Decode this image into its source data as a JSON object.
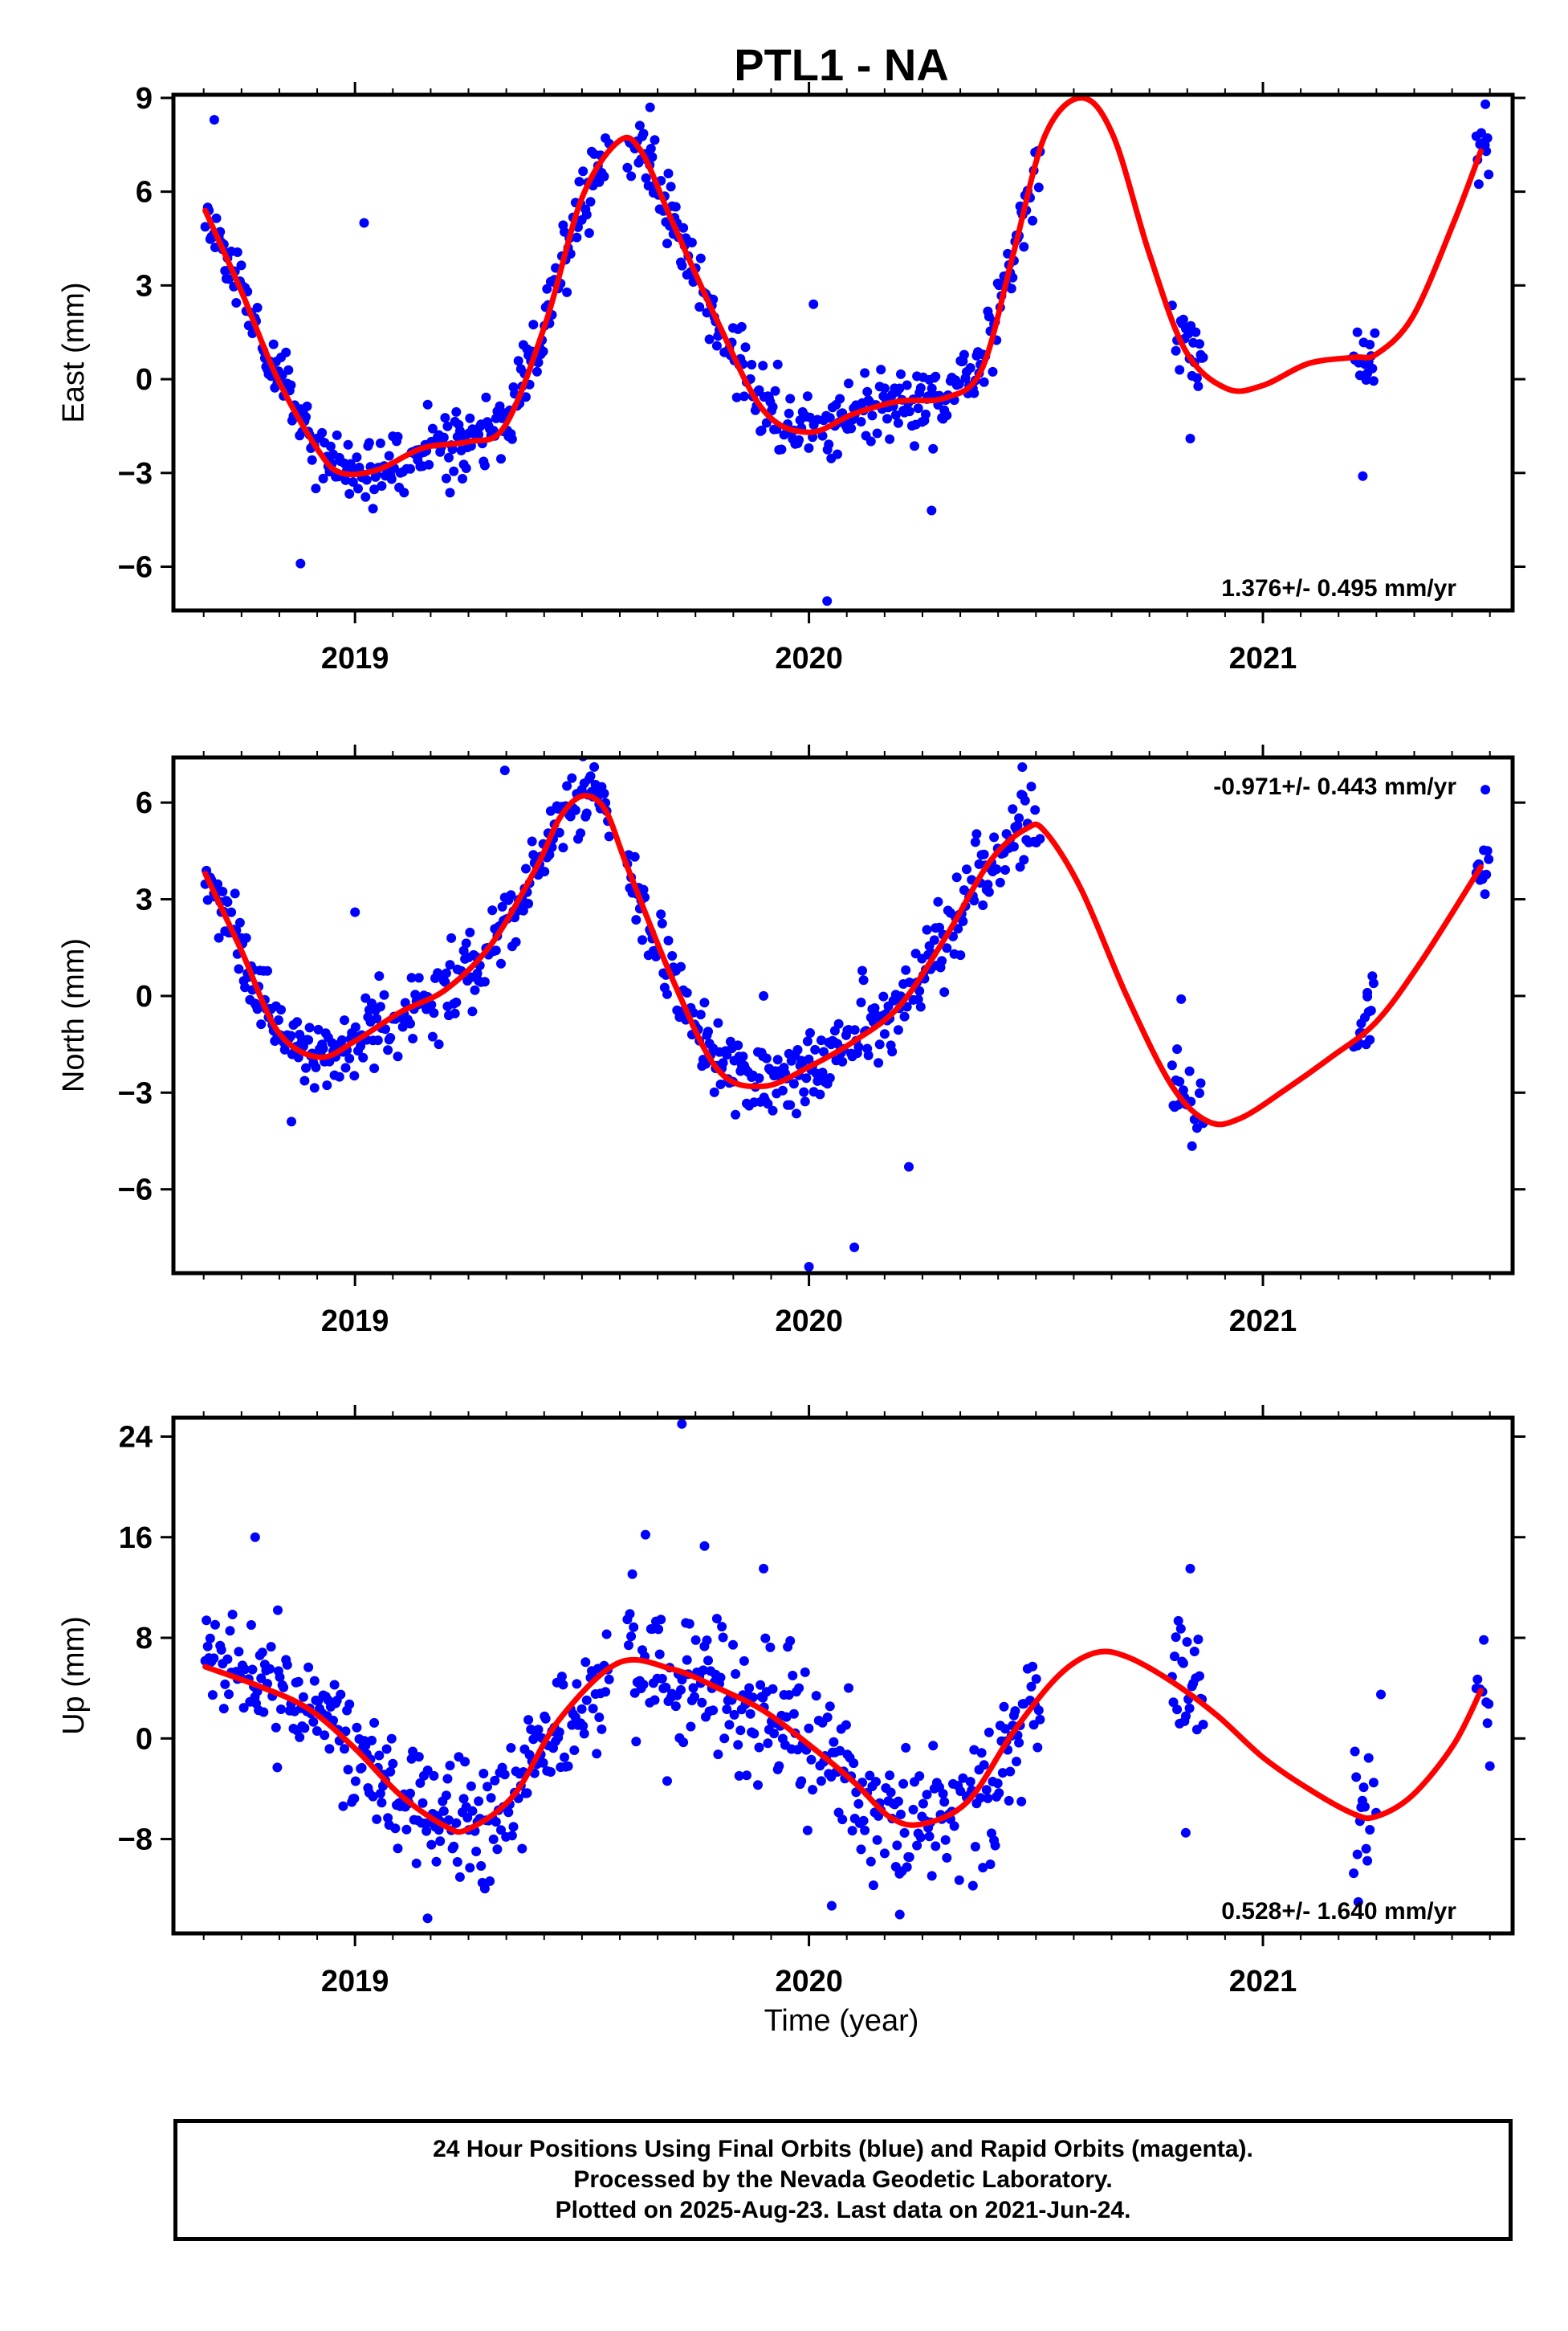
{
  "chart_data": {
    "type": "scatter",
    "title": "PTL1 - NA",
    "xlabel": "Time (year)",
    "xlim": [
      2018.6,
      2021.55
    ],
    "x_ticks": [
      2019,
      2020,
      2021
    ],
    "x_tick_labels": [
      "2019",
      "2020",
      "2021"
    ],
    "colors": {
      "points": "#0000ff",
      "fit": "#ff0000"
    },
    "panels": [
      {
        "ylabel": "East (mm)",
        "ylim": [
          -7.4,
          9.1
        ],
        "y_ticks": [
          -6,
          -3,
          0,
          3,
          6,
          9
        ],
        "y_tick_labels": [
          "−6",
          "−3",
          "0",
          "3",
          "6",
          "9"
        ],
        "rate": "1.376+/- 0.495 mm/yr",
        "rate_position": "bottom-right",
        "fit": {
          "x": [
            2018.67,
            2018.75,
            2018.83,
            2018.92,
            2018.97,
            2019.05,
            2019.15,
            2019.25,
            2019.33,
            2019.42,
            2019.5,
            2019.58,
            2019.63,
            2019.7,
            2019.8,
            2019.9,
            2020.0,
            2020.1,
            2020.2,
            2020.3,
            2020.38,
            2020.45,
            2020.52,
            2020.6,
            2020.67,
            2020.75,
            2020.83,
            2020.92,
            2021.0,
            2021.1,
            2021.2,
            2021.25,
            2021.33,
            2021.42,
            2021.48
          ],
          "y": [
            5.4,
            2.8,
            0.0,
            -2.3,
            -3.0,
            -2.9,
            -2.2,
            -2.0,
            -1.5,
            1.8,
            5.8,
            7.6,
            7.3,
            5.0,
            1.8,
            -1.0,
            -1.7,
            -1.1,
            -0.7,
            -0.6,
            0.3,
            4.0,
            7.8,
            9.0,
            7.8,
            4.0,
            0.9,
            -0.3,
            -0.2,
            0.5,
            0.7,
            0.8,
            2.0,
            5.0,
            7.3
          ]
        },
        "segments": [
          {
            "x_range": [
              2018.67,
              2019.56
            ],
            "amp": 0.55,
            "seed": 11
          },
          {
            "x_range": [
              2019.6,
              2020.51
            ],
            "amp": 0.55,
            "seed": 23
          },
          {
            "x_range": [
              2020.8,
              2020.87
            ],
            "amp": 0.55,
            "seed": 37
          },
          {
            "x_range": [
              2021.2,
              2021.25
            ],
            "amp": 0.6,
            "seed": 41
          },
          {
            "x_range": [
              2021.47,
              2021.5
            ],
            "amp": 0.5,
            "seed": 53
          }
        ],
        "outliers": [
          [
            2018.69,
            8.3
          ],
          [
            2018.88,
            -5.9
          ],
          [
            2019.02,
            5.0
          ],
          [
            2020.04,
            -7.1
          ],
          [
            2020.01,
            2.4
          ],
          [
            2020.27,
            -4.2
          ],
          [
            2019.65,
            8.7
          ],
          [
            2020.84,
            -1.9
          ],
          [
            2021.22,
            -3.1
          ],
          [
            2021.49,
            8.8
          ]
        ]
      },
      {
        "ylabel": "North (mm)",
        "ylim": [
          -8.6,
          7.4
        ],
        "y_ticks": [
          -6,
          -3,
          0,
          3,
          6
        ],
        "y_tick_labels": [
          "−6",
          "−3",
          "0",
          "3",
          "6"
        ],
        "rate": "-0.971+/- 0.443 mm/yr",
        "rate_position": "top-right",
        "fit": {
          "x": [
            2018.67,
            2018.75,
            2018.83,
            2018.92,
            2019.0,
            2019.1,
            2019.2,
            2019.3,
            2019.4,
            2019.45,
            2019.5,
            2019.55,
            2019.6,
            2019.7,
            2019.8,
            2019.9,
            2020.0,
            2020.1,
            2020.2,
            2020.3,
            2020.4,
            2020.48,
            2020.52,
            2020.6,
            2020.7,
            2020.8,
            2020.88,
            2020.95,
            2021.05,
            2021.15,
            2021.25,
            2021.35,
            2021.48
          ],
          "y": [
            3.8,
            1.4,
            -1.1,
            -1.9,
            -1.4,
            -0.5,
            0.2,
            1.6,
            4.0,
            5.5,
            6.2,
            5.8,
            4.0,
            0.5,
            -2.3,
            -2.8,
            -2.2,
            -1.4,
            -0.3,
            1.8,
            4.2,
            5.2,
            5.1,
            3.3,
            0.0,
            -2.8,
            -3.9,
            -3.8,
            -2.9,
            -1.9,
            -0.8,
            1.1,
            4.0
          ]
        },
        "segments": [
          {
            "x_range": [
              2018.67,
              2019.56
            ],
            "amp": 0.6,
            "seed": 61
          },
          {
            "x_range": [
              2019.6,
              2020.51
            ],
            "amp": 0.65,
            "seed": 73
          },
          {
            "x_range": [
              2020.8,
              2020.87
            ],
            "amp": 0.6,
            "seed": 79
          },
          {
            "x_range": [
              2021.2,
              2021.25
            ],
            "amp": 0.6,
            "seed": 83
          },
          {
            "x_range": [
              2021.47,
              2021.5
            ],
            "amp": 0.5,
            "seed": 89
          }
        ],
        "outliers": [
          [
            2019.0,
            2.6
          ],
          [
            2019.33,
            7.0
          ],
          [
            2020.0,
            -8.4
          ],
          [
            2020.1,
            -7.8
          ],
          [
            2020.22,
            -5.3
          ],
          [
            2019.9,
            0.0
          ],
          [
            2020.47,
            7.1
          ],
          [
            2020.82,
            -0.1
          ],
          [
            2021.23,
            0.1
          ],
          [
            2021.49,
            6.4
          ],
          [
            2018.86,
            -3.9
          ]
        ]
      },
      {
        "ylabel": "Up (mm)",
        "ylim": [
          -15.5,
          25.5
        ],
        "y_ticks": [
          -8,
          0,
          8,
          16,
          24
        ],
        "y_tick_labels": [
          "−8",
          "0",
          "8",
          "16",
          "24"
        ],
        "rate": "0.528+/- 1.640 mm/yr",
        "rate_position": "bottom-right",
        "fit": {
          "x": [
            2018.67,
            2018.8,
            2018.9,
            2019.0,
            2019.1,
            2019.2,
            2019.25,
            2019.35,
            2019.45,
            2019.58,
            2019.7,
            2019.8,
            2019.9,
            2020.0,
            2020.1,
            2020.18,
            2020.25,
            2020.35,
            2020.45,
            2020.55,
            2020.63,
            2020.7,
            2020.8,
            2020.9,
            2021.0,
            2021.1,
            2021.2,
            2021.25,
            2021.33,
            2021.42,
            2021.48
          ],
          "y": [
            5.7,
            4.0,
            2.3,
            -0.8,
            -4.5,
            -7.0,
            -7.2,
            -4.5,
            1.5,
            6.0,
            5.5,
            4.0,
            2.2,
            -0.5,
            -3.5,
            -6.3,
            -6.8,
            -5.0,
            0.5,
            5.0,
            6.8,
            6.5,
            4.5,
            1.8,
            -1.5,
            -4.0,
            -6.0,
            -6.2,
            -4.5,
            -0.5,
            3.8
          ]
        },
        "segments": [
          {
            "x_range": [
              2018.67,
              2019.56
            ],
            "amp": 2.4,
            "seed": 97
          },
          {
            "x_range": [
              2019.6,
              2020.51
            ],
            "amp": 2.8,
            "seed": 101
          },
          {
            "x_range": [
              2020.8,
              2020.87
            ],
            "amp": 2.6,
            "seed": 107
          },
          {
            "x_range": [
              2021.2,
              2021.25
            ],
            "amp": 2.6,
            "seed": 109
          },
          {
            "x_range": [
              2021.47,
              2021.5
            ],
            "amp": 2.2,
            "seed": 113
          }
        ],
        "outliers": [
          [
            2019.72,
            25.0
          ],
          [
            2018.78,
            16.0
          ],
          [
            2019.64,
            16.2
          ],
          [
            2019.77,
            15.3
          ],
          [
            2019.9,
            13.5
          ],
          [
            2020.84,
            13.5
          ],
          [
            2021.21,
            -13.0
          ],
          [
            2021.26,
            3.5
          ],
          [
            2021.5,
            -2.2
          ],
          [
            2020.83,
            -7.5
          ],
          [
            2020.05,
            -13.3
          ],
          [
            2020.2,
            -14.0
          ],
          [
            2019.16,
            -14.3
          ],
          [
            2018.83,
            10.2
          ]
        ]
      }
    ]
  },
  "footer": {
    "line1": "24 Hour Positions Using Final Orbits (blue) and Rapid Orbits (magenta).",
    "line2": "Processed by the Nevada Geodetic Laboratory.",
    "line3": "Plotted on 2025-Aug-23. Last data on 2021-Jun-24."
  }
}
